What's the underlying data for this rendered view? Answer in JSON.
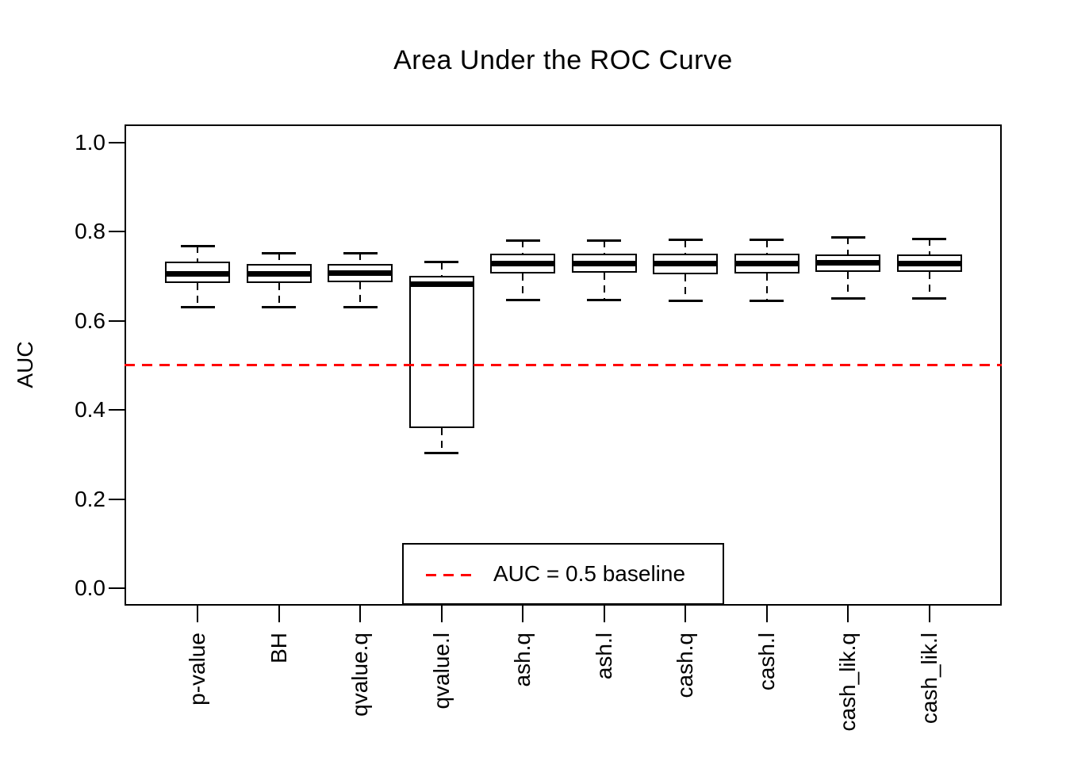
{
  "chart_data": {
    "type": "boxplot",
    "title": "Area Under the ROC Curve",
    "ylabel": "AUC",
    "xlabel": "",
    "ylim": [
      0.0,
      1.0
    ],
    "grid": false,
    "yticks": [
      {
        "value": 0.0,
        "label": "0.0"
      },
      {
        "value": 0.2,
        "label": "0.2"
      },
      {
        "value": 0.4,
        "label": "0.4"
      },
      {
        "value": 0.6,
        "label": "0.6"
      },
      {
        "value": 0.8,
        "label": "0.8"
      },
      {
        "value": 1.0,
        "label": "1.0"
      }
    ],
    "categories": [
      "p-value",
      "BH",
      "qvalue.q",
      "qvalue.l",
      "ash.q",
      "ash.l",
      "cash.q",
      "cash.l",
      "cash_lik.q",
      "cash_lik.l"
    ],
    "boxes": [
      {
        "category": "p-value",
        "whisker_low": 0.63,
        "q1": 0.684,
        "median": 0.705,
        "q3": 0.732,
        "whisker_high": 0.768
      },
      {
        "category": "BH",
        "whisker_low": 0.63,
        "q1": 0.684,
        "median": 0.705,
        "q3": 0.728,
        "whisker_high": 0.752
      },
      {
        "category": "qvalue.q",
        "whisker_low": 0.63,
        "q1": 0.686,
        "median": 0.706,
        "q3": 0.728,
        "whisker_high": 0.752
      },
      {
        "category": "qvalue.l",
        "whisker_low": 0.303,
        "q1": 0.36,
        "median": 0.682,
        "q3": 0.7,
        "whisker_high": 0.731
      },
      {
        "category": "ash.q",
        "whisker_low": 0.646,
        "q1": 0.706,
        "median": 0.728,
        "q3": 0.75,
        "whisker_high": 0.78
      },
      {
        "category": "ash.l",
        "whisker_low": 0.646,
        "q1": 0.707,
        "median": 0.728,
        "q3": 0.75,
        "whisker_high": 0.78
      },
      {
        "category": "cash.q",
        "whisker_low": 0.645,
        "q1": 0.704,
        "median": 0.728,
        "q3": 0.751,
        "whisker_high": 0.781
      },
      {
        "category": "cash.l",
        "whisker_low": 0.645,
        "q1": 0.706,
        "median": 0.728,
        "q3": 0.75,
        "whisker_high": 0.781
      },
      {
        "category": "cash_lik.q",
        "whisker_low": 0.65,
        "q1": 0.709,
        "median": 0.729,
        "q3": 0.749,
        "whisker_high": 0.787
      },
      {
        "category": "cash_lik.l",
        "whisker_low": 0.65,
        "q1": 0.71,
        "median": 0.728,
        "q3": 0.749,
        "whisker_high": 0.784
      }
    ],
    "baseline": {
      "value": 0.5,
      "style": "dashed",
      "color": "#FF0000"
    },
    "legend": {
      "label": "AUC = 0.5 baseline",
      "position": "bottom-center",
      "line_color": "#FF0000",
      "line_style": "dashed"
    },
    "colors": {
      "box_fill": "#FFFFFF",
      "line": "#000000",
      "baseline": "#FF0000",
      "background": "#FFFFFF"
    }
  }
}
